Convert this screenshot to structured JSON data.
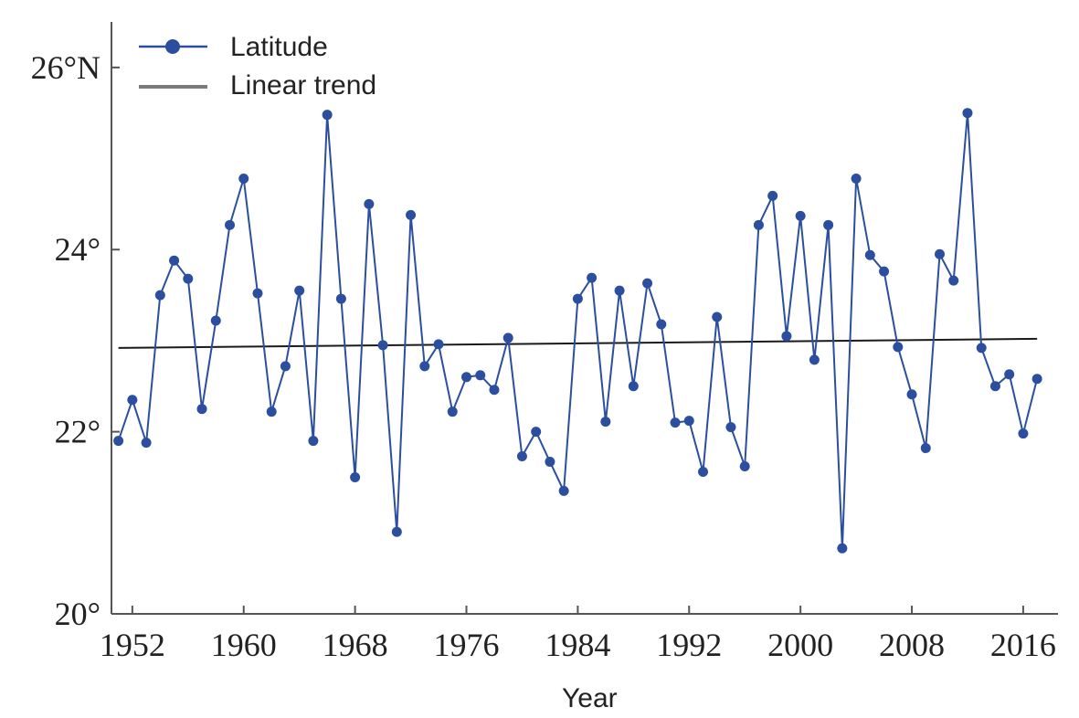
{
  "chart_data": {
    "type": "line",
    "title": "",
    "xlabel": "Year",
    "ylabel": "",
    "xlim": [
      1950.5,
      2018.5
    ],
    "ylim": [
      20,
      26.5
    ],
    "x_ticks": [
      1952,
      1960,
      1968,
      1976,
      1984,
      1992,
      2000,
      2008,
      2016
    ],
    "x_tick_labels": [
      "1952",
      "1960",
      "1968",
      "1976",
      "1984",
      "1992",
      "2000",
      "2008",
      "2016"
    ],
    "y_ticks": [
      20,
      22,
      24,
      26
    ],
    "y_tick_labels": [
      "20°",
      "22°",
      "24°",
      "26°N"
    ],
    "legend_position": "top-left",
    "series": [
      {
        "name": "Latitude",
        "color": "#2b4f9e",
        "marker": "circle",
        "x": [
          1951,
          1952,
          1953,
          1954,
          1955,
          1956,
          1957,
          1958,
          1959,
          1960,
          1961,
          1962,
          1963,
          1964,
          1965,
          1966,
          1967,
          1968,
          1969,
          1970,
          1971,
          1972,
          1973,
          1974,
          1975,
          1976,
          1977,
          1978,
          1979,
          1980,
          1981,
          1982,
          1983,
          1984,
          1985,
          1986,
          1987,
          1988,
          1989,
          1990,
          1991,
          1992,
          1993,
          1994,
          1995,
          1996,
          1997,
          1998,
          1999,
          2000,
          2001,
          2002,
          2003,
          2004,
          2005,
          2006,
          2007,
          2008,
          2009,
          2010,
          2011,
          2012,
          2013,
          2014,
          2015,
          2016,
          2017
        ],
        "values": [
          21.9,
          22.35,
          21.88,
          23.5,
          23.88,
          23.68,
          22.25,
          23.22,
          24.27,
          24.78,
          23.52,
          22.22,
          22.72,
          23.55,
          21.9,
          25.48,
          23.46,
          21.5,
          24.5,
          22.95,
          20.9,
          24.38,
          22.72,
          22.96,
          22.22,
          22.6,
          22.62,
          22.46,
          23.03,
          21.73,
          22.0,
          21.67,
          21.35,
          23.46,
          23.69,
          22.11,
          23.55,
          22.5,
          23.63,
          23.18,
          22.1,
          22.12,
          21.56,
          23.26,
          22.05,
          21.62,
          24.27,
          24.59,
          23.05,
          24.37,
          22.79,
          24.27,
          20.72,
          24.78,
          23.94,
          23.76,
          22.93,
          22.41,
          21.82,
          23.95,
          23.66,
          25.5,
          22.92,
          22.5,
          22.63,
          21.98,
          22.58
        ]
      },
      {
        "name": "Linear trend",
        "color": "#1a1a1a",
        "legend_color": "#7a7a7a",
        "x": [
          1951,
          2017
        ],
        "values": [
          22.92,
          23.02
        ]
      }
    ]
  }
}
